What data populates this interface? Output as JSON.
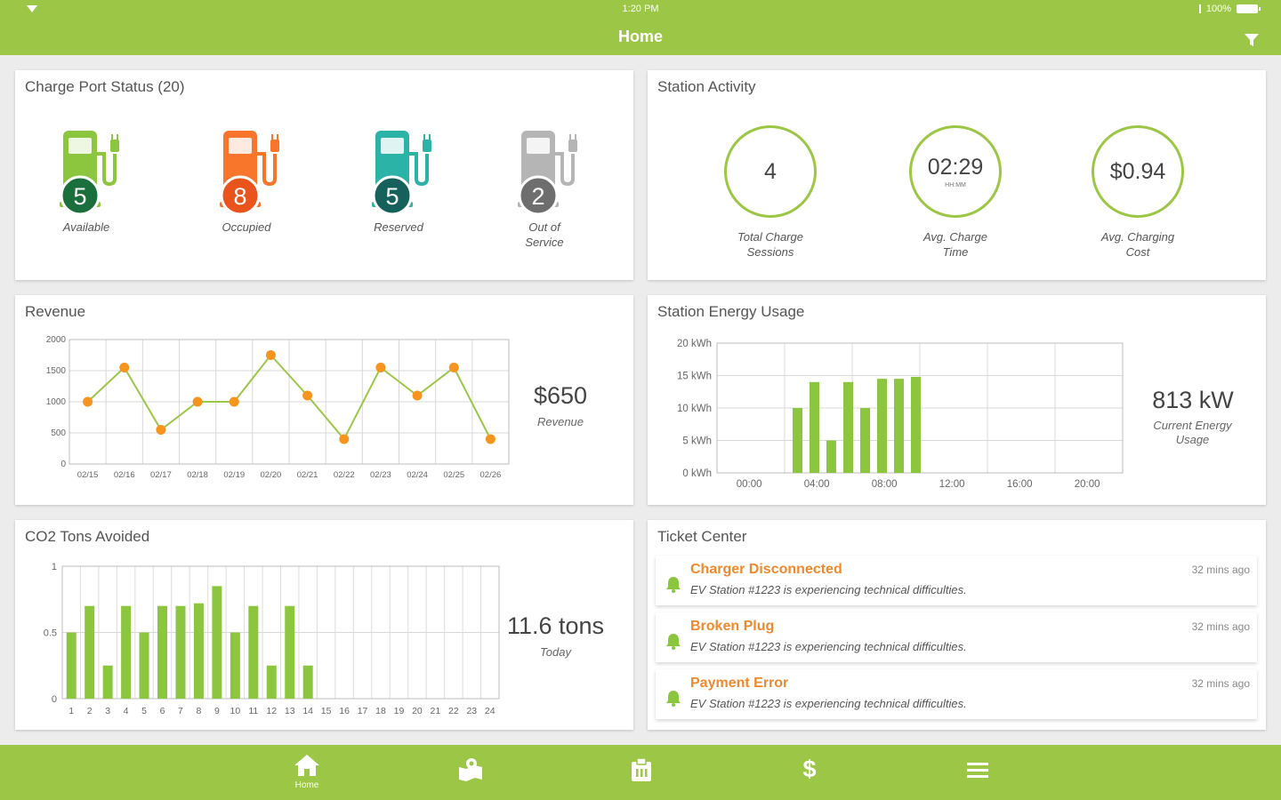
{
  "status_bar": {
    "time": "1:20 PM",
    "battery": "100%"
  },
  "header": {
    "title": "Home"
  },
  "charge_port_status": {
    "title": "Charge Port Status (20)",
    "ports": [
      {
        "count": "5",
        "label": "Available",
        "color": "#8cc63f",
        "badge_color": "#1a6f3c"
      },
      {
        "count": "8",
        "label": "Occupied",
        "color": "#f7762b",
        "badge_color": "#e8541c"
      },
      {
        "count": "5",
        "label": "Reserved",
        "color": "#2bb3a8",
        "badge_color": "#17615c"
      },
      {
        "count": "2",
        "label": "Out of Service",
        "color": "#b5b5b5",
        "badge_color": "#6e6e6e"
      }
    ]
  },
  "station_activity": {
    "title": "Station Activity",
    "stats": [
      {
        "value": "4",
        "sub": "",
        "label": "Total Charge Sessions"
      },
      {
        "value": "02:29",
        "sub": "HH:MM",
        "label": "Avg. Charge Time"
      },
      {
        "value": "$0.94",
        "sub": "",
        "label": "Avg. Charging Cost"
      }
    ]
  },
  "revenue": {
    "title": "Revenue",
    "value": "$650",
    "value_label": "Revenue",
    "chart_data": {
      "type": "line",
      "x": [
        "02/15",
        "02/16",
        "02/17",
        "02/18",
        "02/19",
        "02/20",
        "02/21",
        "02/22",
        "02/23",
        "02/24",
        "02/25",
        "02/26"
      ],
      "values": [
        1000,
        1550,
        550,
        1000,
        1000,
        1750,
        1100,
        400,
        1550,
        1100,
        1550,
        400
      ],
      "y_ticks": [
        "2000",
        "1500",
        "1000",
        "500",
        "0"
      ],
      "ylim": [
        0,
        2000
      ],
      "line_color": "#9cc645",
      "point_color": "#f7941d",
      "grid": true
    }
  },
  "energy": {
    "title": "Station Energy Usage",
    "value": "813 kW",
    "value_label": "Current Energy Usage",
    "chart_data": {
      "type": "bar",
      "y_ticks": [
        "20 kWh",
        "15 kWh",
        "10 kWh",
        "5 kWh",
        "0 kWh"
      ],
      "x_ticks": [
        "00:00",
        "04:00",
        "08:00",
        "12:00",
        "16:00",
        "20:00"
      ],
      "ylim": [
        0,
        20
      ],
      "hours": [
        4,
        5,
        6,
        7,
        8,
        9,
        10,
        11
      ],
      "values": [
        10,
        14,
        5,
        14,
        10,
        14.5,
        14.5,
        14.8
      ],
      "bar_color": "#8cc63f",
      "grid": true
    }
  },
  "co2": {
    "title": "CO2 Tons Avoided",
    "value": "11.6 tons",
    "value_label": "Today",
    "chart_data": {
      "type": "bar",
      "categories": [
        "1",
        "2",
        "3",
        "4",
        "5",
        "6",
        "7",
        "8",
        "9",
        "10",
        "11",
        "12",
        "13",
        "14",
        "15",
        "16",
        "17",
        "18",
        "19",
        "20",
        "21",
        "22",
        "23",
        "24"
      ],
      "values": [
        0.5,
        0.7,
        0.25,
        0.7,
        0.5,
        0.7,
        0.7,
        0.72,
        0.85,
        0.5,
        0.7,
        0.25,
        0.7,
        0.25,
        0,
        0,
        0,
        0,
        0,
        0,
        0,
        0,
        0,
        0
      ],
      "y_ticks": [
        "1",
        "0.5",
        "0"
      ],
      "ylim": [
        0,
        1
      ],
      "bar_color": "#8cc63f",
      "grid": true
    }
  },
  "ticket_center": {
    "title": "Ticket Center",
    "tickets": [
      {
        "title": "Charger Disconnected",
        "desc": "EV Station #1223 is experiencing technical difficulties.",
        "time": "32 mins ago"
      },
      {
        "title": "Broken Plug",
        "desc": "EV Station #1223 is experiencing technical difficulties.",
        "time": "32 mins ago"
      },
      {
        "title": "Payment Error",
        "desc": "EV Station #1223 is experiencing technical difficulties.",
        "time": "32 mins ago"
      }
    ]
  },
  "bottom_nav": {
    "items": [
      {
        "label": "Home",
        "icon": "home-icon"
      },
      {
        "label": "",
        "icon": "map-icon"
      },
      {
        "label": "",
        "icon": "clipboard-icon"
      },
      {
        "label": "",
        "icon": "dollar-icon"
      },
      {
        "label": "",
        "icon": "menu-icon"
      }
    ]
  },
  "colors": {
    "brand": "#9cc645",
    "ticket_title": "#f0892e"
  }
}
